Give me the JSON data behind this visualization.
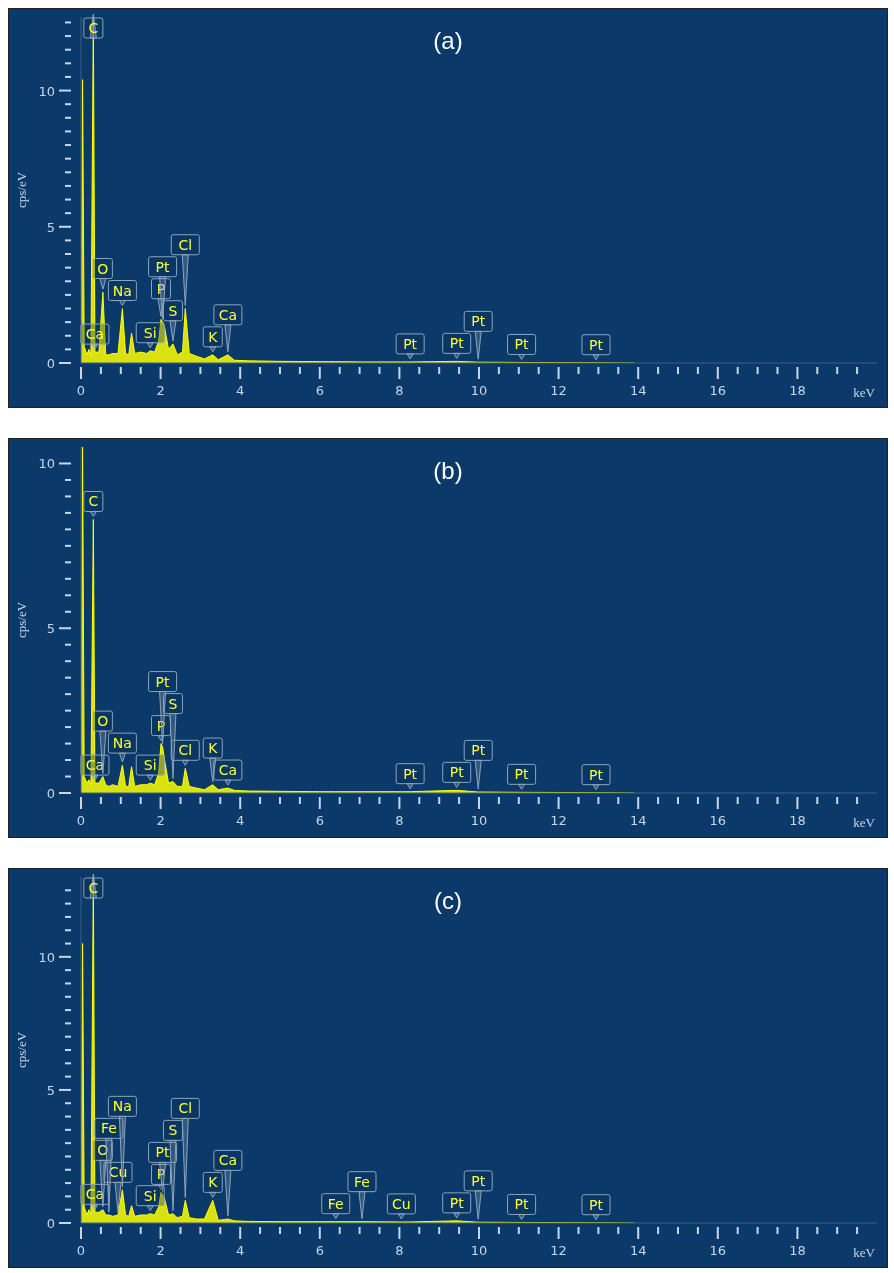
{
  "chart_data": [
    {
      "type": "area",
      "title": "(a)",
      "xlabel": "keV",
      "ylabel": "cps/eV",
      "color": "#ffff00",
      "x": [
        0,
        0.04,
        0.08,
        0.15,
        0.2,
        0.25,
        0.31,
        0.35,
        0.45,
        0.55,
        0.62,
        0.7,
        0.8,
        0.93,
        1.04,
        1.12,
        1.2,
        1.27,
        1.35,
        1.5,
        1.65,
        1.74,
        1.85,
        1.95,
        2.01,
        2.05,
        2.1,
        2.2,
        2.31,
        2.42,
        2.55,
        2.62,
        2.72,
        2.9,
        3.1,
        3.31,
        3.45,
        3.69,
        3.85,
        4.2,
        5,
        6,
        6.4,
        7.06,
        8.05,
        8.27,
        9.44,
        9.98,
        11.07,
        12.94,
        13.9
      ],
      "values": [
        0,
        10.4,
        0.6,
        0.3,
        0.5,
        0.3,
        12.7,
        0.4,
        0.4,
        2.6,
        0.3,
        0.3,
        0.35,
        0.35,
        2.0,
        0.35,
        0.3,
        1.1,
        0.35,
        0.4,
        0.35,
        0.45,
        0.4,
        0.8,
        1.6,
        1.5,
        1.3,
        0.5,
        0.7,
        0.3,
        0.4,
        2.0,
        0.35,
        0.25,
        0.15,
        0.3,
        0.12,
        0.3,
        0.1,
        0.08,
        0.06,
        0.05,
        0.05,
        0.04,
        0.04,
        0.04,
        0.06,
        0.03,
        0.02,
        0.01,
        0
      ],
      "xlim": [
        0,
        20
      ],
      "ylim": [
        0,
        12.7
      ],
      "xticks": [
        0,
        {
          "value": 0.5,
          "label": null
        },
        {
          "value": 1,
          "label": null
        },
        {
          "value": 1.5,
          "label": null
        },
        2,
        {
          "value": 2.5,
          "label": null
        },
        {
          "value": 3,
          "label": null
        },
        {
          "value": 3.5,
          "label": null
        },
        4,
        {
          "value": 4.5,
          "label": null
        },
        {
          "value": 5,
          "label": null
        },
        {
          "value": 5.5,
          "label": null
        },
        6,
        {
          "value": 6.5,
          "label": null
        },
        {
          "value": 7,
          "label": null
        },
        {
          "value": 7.5,
          "label": null
        },
        8,
        {
          "value": 8.5,
          "label": null
        },
        {
          "value": 9,
          "label": null
        },
        {
          "value": 9.5,
          "label": null
        },
        10,
        {
          "value": 10.5,
          "label": null
        },
        {
          "value": 11,
          "label": null
        },
        {
          "value": 11.5,
          "label": null
        },
        12,
        {
          "value": 12.5,
          "label": null
        },
        {
          "value": 13,
          "label": null
        },
        {
          "value": 13.5,
          "label": null
        },
        14,
        {
          "value": 14.5,
          "label": null
        },
        {
          "value": 15,
          "label": null
        },
        {
          "value": 15.5,
          "label": null
        },
        16,
        {
          "value": 16.5,
          "label": null
        },
        {
          "value": 17,
          "label": null
        },
        {
          "value": 17.5,
          "label": null
        },
        18,
        {
          "value": 18.5,
          "label": null
        },
        {
          "value": 19,
          "label": null
        },
        {
          "value": 19.5,
          "label": null
        }
      ],
      "yticks": [
        0,
        {
          "value": 0.5,
          "label": null
        },
        {
          "value": 1,
          "label": null
        },
        {
          "value": 1.5,
          "label": null
        },
        {
          "value": 2,
          "label": null
        },
        {
          "value": 2.5,
          "label": null
        },
        {
          "value": 3,
          "label": null
        },
        {
          "value": 3.5,
          "label": null
        },
        {
          "value": 4,
          "label": null
        },
        {
          "value": 4.5,
          "label": null
        },
        5,
        {
          "value": 5.5,
          "label": null
        },
        {
          "value": 6,
          "label": null
        },
        {
          "value": 6.5,
          "label": null
        },
        {
          "value": 7,
          "label": null
        },
        {
          "value": 7.5,
          "label": null
        },
        {
          "value": 8,
          "label": null
        },
        {
          "value": 8.5,
          "label": null
        },
        {
          "value": 9,
          "label": null
        },
        {
          "value": 9.5,
          "label": null
        },
        10,
        {
          "value": 10.5,
          "label": null
        },
        {
          "value": 11,
          "label": null
        },
        {
          "value": 11.5,
          "label": null
        },
        {
          "value": 12,
          "label": null
        },
        {
          "value": 12.5,
          "label": null
        }
      ],
      "annotations": [
        {
          "text": "Ca",
          "x": 0.35,
          "y": 0.4
        },
        {
          "text": "Si",
          "x": 1.74,
          "y": 0.45
        },
        {
          "text": "K",
          "x": 3.31,
          "y": 0.3
        },
        {
          "text": "S",
          "x": 2.31,
          "y": 0.7
        },
        {
          "text": "P",
          "x": 2.01,
          "y": 1.6
        },
        {
          "text": "Pt",
          "x": 2.05,
          "y": 1.5
        },
        {
          "text": "Na",
          "x": 1.04,
          "y": 2.0
        },
        {
          "text": "O",
          "x": 0.55,
          "y": 2.6
        },
        {
          "text": "Cl",
          "x": 2.62,
          "y": 2.0
        },
        {
          "text": "Ca",
          "x": 3.69,
          "y": 0.3
        },
        {
          "text": "C",
          "x": 0.31,
          "y": 12.7
        },
        {
          "text": "Pt",
          "x": 8.27,
          "y": 0.04
        },
        {
          "text": "Pt",
          "x": 9.44,
          "y": 0.06
        },
        {
          "text": "Pt",
          "x": 9.98,
          "y": 0.03
        },
        {
          "text": "Pt",
          "x": 11.07,
          "y": 0.02
        },
        {
          "text": "Pt",
          "x": 12.94,
          "y": 0.01
        }
      ]
    },
    {
      "type": "area",
      "title": "(b)",
      "xlabel": "keV",
      "ylabel": "cps/eV",
      "color": "#ffff00",
      "x": [
        0,
        0.04,
        0.08,
        0.15,
        0.2,
        0.25,
        0.31,
        0.35,
        0.45,
        0.55,
        0.62,
        0.7,
        0.8,
        0.93,
        1.04,
        1.12,
        1.2,
        1.27,
        1.35,
        1.5,
        1.65,
        1.74,
        1.85,
        1.95,
        2.01,
        2.05,
        2.1,
        2.2,
        2.31,
        2.42,
        2.55,
        2.62,
        2.72,
        2.9,
        3.1,
        3.31,
        3.45,
        3.69,
        3.85,
        4.2,
        5,
        6,
        6.4,
        7.06,
        8.05,
        8.27,
        9.44,
        9.98,
        11.07,
        12.94,
        13.9
      ],
      "values": [
        0,
        10.5,
        0.5,
        0.3,
        0.4,
        0.25,
        8.3,
        0.3,
        0.3,
        0.5,
        0.25,
        0.2,
        0.25,
        0.2,
        0.85,
        0.2,
        0.2,
        0.8,
        0.2,
        0.25,
        0.25,
        0.3,
        0.25,
        0.6,
        1.5,
        1.4,
        1.0,
        0.3,
        0.35,
        0.2,
        0.2,
        0.75,
        0.2,
        0.15,
        0.1,
        0.25,
        0.1,
        0.15,
        0.08,
        0.06,
        0.05,
        0.04,
        0.04,
        0.04,
        0.04,
        0.04,
        0.08,
        0.03,
        0.02,
        0.01,
        0
      ],
      "xlim": [
        0,
        20
      ],
      "ylim": [
        0,
        10.5
      ],
      "xticks": [
        0,
        {
          "value": 0.5,
          "label": null
        },
        {
          "value": 1,
          "label": null
        },
        {
          "value": 1.5,
          "label": null
        },
        2,
        {
          "value": 2.5,
          "label": null
        },
        {
          "value": 3,
          "label": null
        },
        {
          "value": 3.5,
          "label": null
        },
        4,
        {
          "value": 4.5,
          "label": null
        },
        {
          "value": 5,
          "label": null
        },
        {
          "value": 5.5,
          "label": null
        },
        6,
        {
          "value": 6.5,
          "label": null
        },
        {
          "value": 7,
          "label": null
        },
        {
          "value": 7.5,
          "label": null
        },
        8,
        {
          "value": 8.5,
          "label": null
        },
        {
          "value": 9,
          "label": null
        },
        {
          "value": 9.5,
          "label": null
        },
        10,
        {
          "value": 10.5,
          "label": null
        },
        {
          "value": 11,
          "label": null
        },
        {
          "value": 11.5,
          "label": null
        },
        12,
        {
          "value": 12.5,
          "label": null
        },
        {
          "value": 13,
          "label": null
        },
        {
          "value": 13.5,
          "label": null
        },
        14,
        {
          "value": 14.5,
          "label": null
        },
        {
          "value": 15,
          "label": null
        },
        {
          "value": 15.5,
          "label": null
        },
        16,
        {
          "value": 16.5,
          "label": null
        },
        {
          "value": 17,
          "label": null
        },
        {
          "value": 17.5,
          "label": null
        },
        18,
        {
          "value": 18.5,
          "label": null
        },
        {
          "value": 19,
          "label": null
        },
        {
          "value": 19.5,
          "label": null
        }
      ],
      "yticks": [
        0,
        {
          "value": 0.5,
          "label": null
        },
        {
          "value": 1,
          "label": null
        },
        {
          "value": 1.5,
          "label": null
        },
        {
          "value": 2,
          "label": null
        },
        {
          "value": 2.5,
          "label": null
        },
        {
          "value": 3,
          "label": null
        },
        {
          "value": 3.5,
          "label": null
        },
        {
          "value": 4,
          "label": null
        },
        {
          "value": 4.5,
          "label": null
        },
        5,
        {
          "value": 5.5,
          "label": null
        },
        {
          "value": 6,
          "label": null
        },
        {
          "value": 6.5,
          "label": null
        },
        {
          "value": 7,
          "label": null
        },
        {
          "value": 7.5,
          "label": null
        },
        {
          "value": 8,
          "label": null
        },
        {
          "value": 8.5,
          "label": null
        },
        {
          "value": 9,
          "label": null
        },
        {
          "value": 9.5,
          "label": null
        },
        10
      ],
      "annotations": [
        {
          "text": "Ca",
          "x": 0.35,
          "y": 0.3
        },
        {
          "text": "Si",
          "x": 1.74,
          "y": 0.3
        },
        {
          "text": "Na",
          "x": 1.04,
          "y": 0.85
        },
        {
          "text": "Cl",
          "x": 2.62,
          "y": 0.75
        },
        {
          "text": "Ca",
          "x": 3.69,
          "y": 0.15
        },
        {
          "text": "K",
          "x": 3.31,
          "y": 0.25
        },
        {
          "text": "O",
          "x": 0.55,
          "y": 0.5
        },
        {
          "text": "P",
          "x": 2.01,
          "y": 1.5
        },
        {
          "text": "S",
          "x": 2.31,
          "y": 0.35
        },
        {
          "text": "Pt",
          "x": 2.05,
          "y": 1.4
        },
        {
          "text": "C",
          "x": 0.31,
          "y": 8.3
        },
        {
          "text": "Pt",
          "x": 8.27,
          "y": 0.04
        },
        {
          "text": "Pt",
          "x": 9.44,
          "y": 0.08
        },
        {
          "text": "Pt",
          "x": 9.98,
          "y": 0.03
        },
        {
          "text": "Pt",
          "x": 11.07,
          "y": 0.02
        },
        {
          "text": "Pt",
          "x": 12.94,
          "y": 0.01
        }
      ]
    },
    {
      "type": "area",
      "title": "(c)",
      "xlabel": "keV",
      "ylabel": "cps/eV",
      "color": "#ffff00",
      "x": [
        0,
        0.04,
        0.08,
        0.15,
        0.2,
        0.25,
        0.31,
        0.35,
        0.45,
        0.55,
        0.62,
        0.7,
        0.8,
        0.93,
        1.04,
        1.12,
        1.2,
        1.27,
        1.35,
        1.5,
        1.65,
        1.74,
        1.85,
        1.95,
        2.01,
        2.05,
        2.1,
        2.2,
        2.31,
        2.42,
        2.55,
        2.62,
        2.72,
        2.9,
        3.1,
        3.31,
        3.45,
        3.69,
        3.85,
        4.2,
        5,
        6,
        6.4,
        7.06,
        8.05,
        8.27,
        9.44,
        9.98,
        11.07,
        12.94,
        13.9
      ],
      "values": [
        0,
        10.5,
        0.6,
        0.3,
        0.5,
        0.3,
        13,
        0.4,
        0.4,
        0.5,
        0.3,
        0.3,
        0.25,
        0.3,
        1.25,
        0.3,
        0.25,
        0.65,
        0.25,
        0.3,
        0.3,
        0.35,
        0.3,
        0.6,
        1.15,
        1.05,
        0.9,
        0.3,
        0.35,
        0.2,
        0.25,
        0.85,
        0.2,
        0.15,
        0.15,
        0.85,
        0.1,
        0.15,
        0.08,
        0.06,
        0.05,
        0.05,
        0.05,
        0.05,
        0.04,
        0.04,
        0.08,
        0.03,
        0.02,
        0.01,
        0
      ],
      "xlim": [
        0,
        20
      ],
      "ylim": [
        0,
        13
      ],
      "xticks": [
        0,
        {
          "value": 0.5,
          "label": null
        },
        {
          "value": 1,
          "label": null
        },
        {
          "value": 1.5,
          "label": null
        },
        2,
        {
          "value": 2.5,
          "label": null
        },
        {
          "value": 3,
          "label": null
        },
        {
          "value": 3.5,
          "label": null
        },
        4,
        {
          "value": 4.5,
          "label": null
        },
        {
          "value": 5,
          "label": null
        },
        {
          "value": 5.5,
          "label": null
        },
        6,
        {
          "value": 6.5,
          "label": null
        },
        {
          "value": 7,
          "label": null
        },
        {
          "value": 7.5,
          "label": null
        },
        8,
        {
          "value": 8.5,
          "label": null
        },
        {
          "value": 9,
          "label": null
        },
        {
          "value": 9.5,
          "label": null
        },
        10,
        {
          "value": 10.5,
          "label": null
        },
        {
          "value": 11,
          "label": null
        },
        {
          "value": 11.5,
          "label": null
        },
        12,
        {
          "value": 12.5,
          "label": null
        },
        {
          "value": 13,
          "label": null
        },
        {
          "value": 13.5,
          "label": null
        },
        14,
        {
          "value": 14.5,
          "label": null
        },
        {
          "value": 15,
          "label": null
        },
        {
          "value": 15.5,
          "label": null
        },
        16,
        {
          "value": 16.5,
          "label": null
        },
        {
          "value": 17,
          "label": null
        },
        {
          "value": 17.5,
          "label": null
        },
        18,
        {
          "value": 18.5,
          "label": null
        },
        {
          "value": 19,
          "label": null
        },
        {
          "value": 19.5,
          "label": null
        }
      ],
      "yticks": [
        0,
        {
          "value": 0.5,
          "label": null
        },
        {
          "value": 1,
          "label": null
        },
        {
          "value": 1.5,
          "label": null
        },
        {
          "value": 2,
          "label": null
        },
        {
          "value": 2.5,
          "label": null
        },
        {
          "value": 3,
          "label": null
        },
        {
          "value": 3.5,
          "label": null
        },
        {
          "value": 4,
          "label": null
        },
        {
          "value": 4.5,
          "label": null
        },
        5,
        {
          "value": 5.5,
          "label": null
        },
        {
          "value": 6,
          "label": null
        },
        {
          "value": 6.5,
          "label": null
        },
        {
          "value": 7,
          "label": null
        },
        {
          "value": 7.5,
          "label": null
        },
        {
          "value": 8,
          "label": null
        },
        {
          "value": 8.5,
          "label": null
        },
        {
          "value": 9,
          "label": null
        },
        {
          "value": 9.5,
          "label": null
        },
        10,
        {
          "value": 10.5,
          "label": null
        },
        {
          "value": 11,
          "label": null
        },
        {
          "value": 11.5,
          "label": null
        },
        {
          "value": 12,
          "label": null
        },
        {
          "value": 12.5,
          "label": null
        }
      ],
      "annotations": [
        {
          "text": "Ca",
          "x": 0.35,
          "y": 0.4
        },
        {
          "text": "Cu",
          "x": 0.93,
          "y": 0.3
        },
        {
          "text": "O",
          "x": 0.55,
          "y": 0.5
        },
        {
          "text": "Fe",
          "x": 0.7,
          "y": 0.3
        },
        {
          "text": "Na",
          "x": 1.04,
          "y": 1.25
        },
        {
          "text": "P",
          "x": 2.01,
          "y": 1.15
        },
        {
          "text": "Pt",
          "x": 2.05,
          "y": 1.05
        },
        {
          "text": "Si",
          "x": 1.74,
          "y": 0.35
        },
        {
          "text": "S",
          "x": 2.31,
          "y": 0.35
        },
        {
          "text": "Cl",
          "x": 2.62,
          "y": 0.85
        },
        {
          "text": "K",
          "x": 3.31,
          "y": 0.85
        },
        {
          "text": "Ca",
          "x": 3.69,
          "y": 0.15
        },
        {
          "text": "C",
          "x": 0.31,
          "y": 13
        },
        {
          "text": "Fe",
          "x": 6.4,
          "y": 0.05
        },
        {
          "text": "Fe",
          "x": 7.06,
          "y": 0.05
        },
        {
          "text": "Cu",
          "x": 8.05,
          "y": 0.04
        },
        {
          "text": "Pt",
          "x": 9.44,
          "y": 0.08
        },
        {
          "text": "Pt",
          "x": 9.98,
          "y": 0.03
        },
        {
          "text": "Pt",
          "x": 11.07,
          "y": 0.02
        },
        {
          "text": "Pt",
          "x": 12.94,
          "y": 0.01
        }
      ]
    }
  ]
}
